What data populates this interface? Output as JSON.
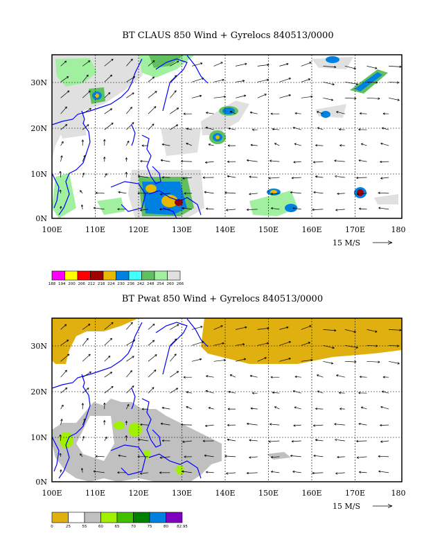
{
  "panels": [
    {
      "id": "claus",
      "title": "BT CLAUS 850 Wind + Gyrelocs 840513/0000",
      "xticks": [
        "100E",
        "110E",
        "120E",
        "130E",
        "140E",
        "150E",
        "160E",
        "170E",
        "180"
      ],
      "yticks": [
        "0N",
        "10N",
        "20N",
        "30N"
      ],
      "ref_vector": "15 M/S",
      "colorbar_labels": [
        "188",
        "194",
        "200",
        "206",
        "212",
        "218",
        "224",
        "230",
        "236",
        "242",
        "248",
        "254",
        "260",
        "266"
      ],
      "colorbar_colors": [
        "#ff00ff",
        "#ffff00",
        "#ff0000",
        "#a00000",
        "#e6b800",
        "#0080e0",
        "#40ffff",
        "#60c060",
        "#a0f0a0",
        "#e0e0e0"
      ]
    },
    {
      "id": "pwat",
      "title": "BT Pwat 850 Wind + Gyrelocs 840513/0000",
      "xticks": [
        "100E",
        "110E",
        "120E",
        "130E",
        "140E",
        "150E",
        "160E",
        "170E",
        "180"
      ],
      "yticks": [
        "0N",
        "10N",
        "20N",
        "30N"
      ],
      "ref_vector": "15 M/S",
      "colorbar_labels": [
        "0",
        "25",
        "55",
        "60",
        "65",
        "70",
        "75",
        "80",
        "82.95"
      ],
      "colorbar_colors": [
        "#e0b010",
        "#ffffff",
        "#c0c0c0",
        "#a0f000",
        "#40c000",
        "#008000",
        "#0080e0",
        "#8000c0"
      ]
    }
  ]
}
